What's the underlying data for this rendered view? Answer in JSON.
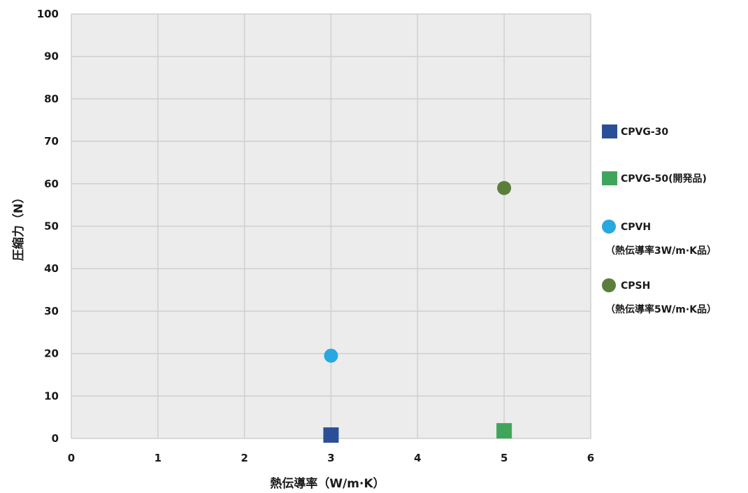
{
  "chart_data": {
    "type": "scatter",
    "xlabel": "熱伝導率（W/m·K）",
    "ylabel": "圧縮力（N）",
    "xlim": [
      0,
      6
    ],
    "ylim": [
      0,
      100
    ],
    "x_ticks": [
      "0",
      "1",
      "2",
      "3",
      "4",
      "5",
      "6"
    ],
    "y_ticks": [
      "0",
      "10",
      "20",
      "30",
      "40",
      "50",
      "60",
      "70",
      "80",
      "90",
      "100"
    ],
    "grid": true,
    "legend_position": "right",
    "series": [
      {
        "name": "CPVG-30",
        "name_line2": "",
        "marker": "square",
        "color": "#2a4f97",
        "x": 3,
        "y": 0.8
      },
      {
        "name": "CPVG-50(開発品)",
        "name_line2": "",
        "marker": "square",
        "color": "#3fa55b",
        "x": 5,
        "y": 1.8
      },
      {
        "name": "CPVH",
        "name_line2": "（熱伝導率3W/m·K品）",
        "marker": "circle",
        "color": "#29a8e0",
        "x": 3,
        "y": 19.5
      },
      {
        "name": "CPSH",
        "name_line2": "（熱伝導率5W/m·K品）",
        "marker": "circle",
        "color": "#5b7f3b",
        "x": 5,
        "y": 59
      }
    ]
  }
}
